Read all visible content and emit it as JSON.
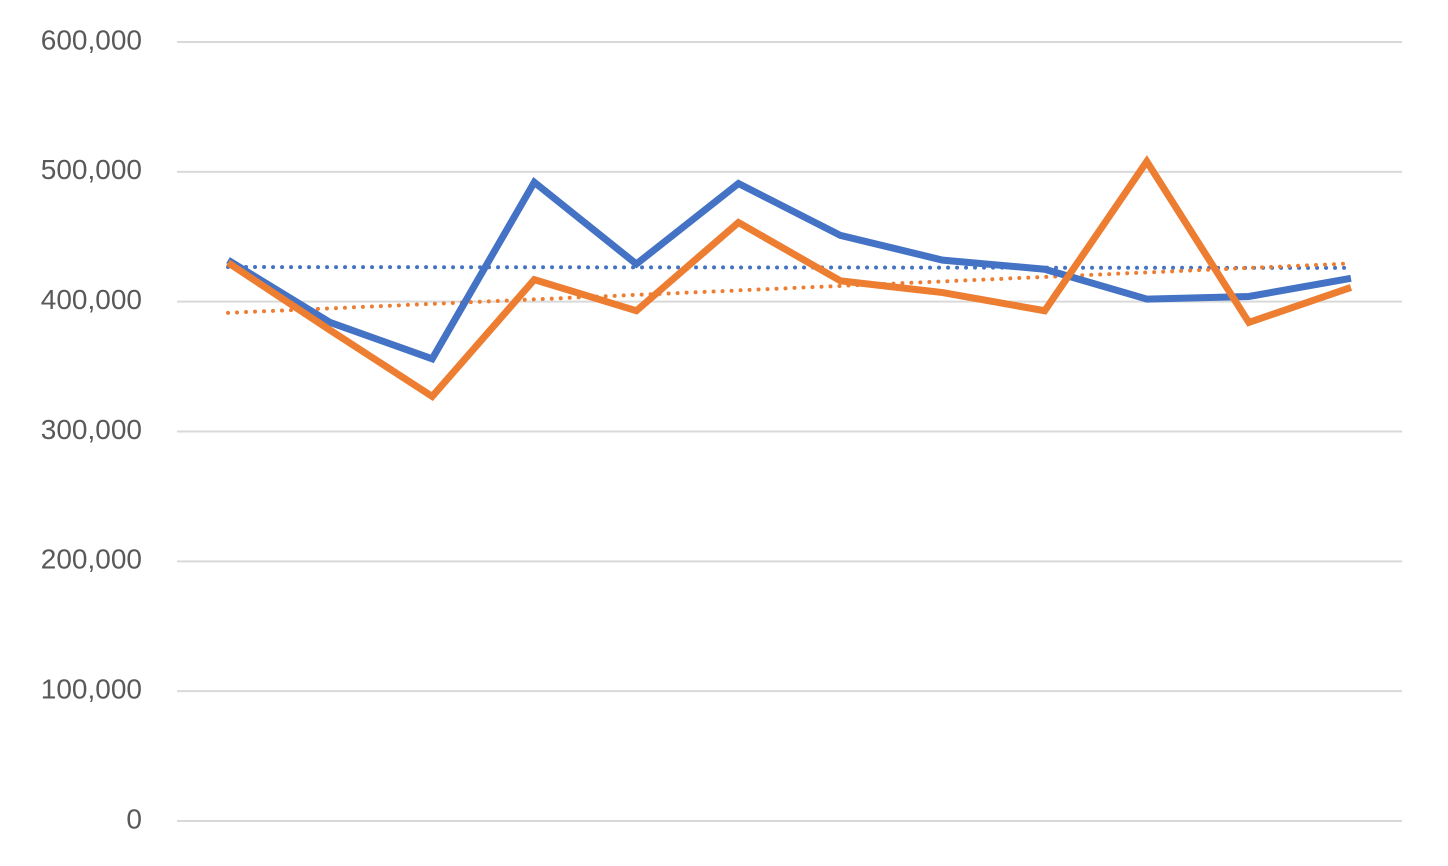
{
  "chart_data": {
    "type": "line",
    "categories": [
      null,
      null,
      null,
      null,
      null,
      null,
      null,
      null,
      null,
      null,
      null,
      null
    ],
    "series": [
      {
        "color": "#4472c4",
        "values": [
          432000,
          384000,
          356000,
          492000,
          429000,
          491000,
          451000,
          432000,
          425000,
          402000,
          404000,
          418000
        ],
        "trendline": "linear"
      },
      {
        "color": "#ed7d31",
        "values": [
          430000,
          378000,
          327000,
          417000,
          393000,
          461000,
          416000,
          407000,
          393000,
          508000,
          384000,
          411000
        ],
        "trendline": "linear"
      }
    ],
    "ylim": [
      0,
      600000
    ],
    "yticks": [
      0,
      {
        "value": 100000,
        "label": "100,000"
      },
      {
        "value": 200000,
        "label": "200,000"
      },
      {
        "value": 300000,
        "label": "300,000"
      },
      {
        "value": 400000,
        "label": "400,000"
      },
      {
        "value": 500000,
        "label": "500,000"
      },
      {
        "value": 600000,
        "label": "600,000"
      }
    ],
    "grid": true
  }
}
